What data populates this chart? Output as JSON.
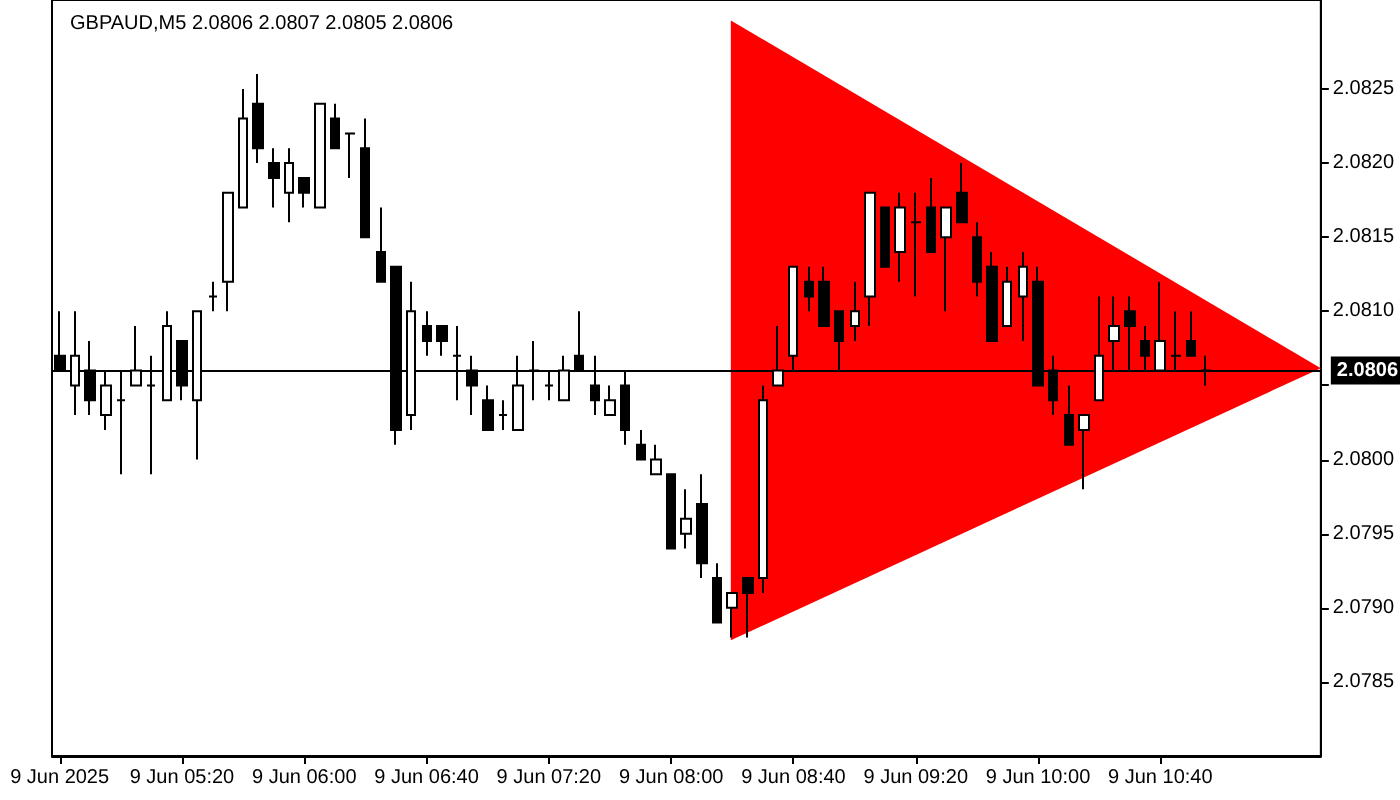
{
  "chart_data": {
    "type": "candlestick",
    "title": "GBPAUD,M5 2.0806 2.0807 2.0805 2.0806",
    "categories": [
      "9 Jun 2025",
      null,
      null,
      null,
      null,
      null,
      null,
      null,
      "9 Jun 05:20",
      null,
      null,
      null,
      null,
      null,
      null,
      null,
      "9 Jun 06:00",
      null,
      null,
      null,
      null,
      null,
      null,
      null,
      "9 Jun 06:40",
      null,
      null,
      null,
      null,
      null,
      null,
      null,
      "9 Jun 07:20",
      null,
      null,
      null,
      null,
      null,
      null,
      null,
      "9 Jun 08:00",
      null,
      null,
      null,
      null,
      null,
      null,
      null,
      "9 Jun 08:40",
      null,
      null,
      null,
      null,
      null,
      null,
      null,
      "9 Jun 09:20",
      null,
      null,
      null,
      null,
      null,
      null,
      null,
      "9 Jun 10:00",
      null,
      null,
      null,
      null,
      null,
      null,
      null,
      "9 Jun 10:40",
      null,
      null,
      null,
      null,
      null,
      null,
      null,
      null,
      null,
      null
    ],
    "ohlc": [
      [
        2.0807,
        2.081,
        2.0806,
        2.0806
      ],
      [
        2.0805,
        2.081,
        2.0803,
        2.0807
      ],
      [
        2.0806,
        2.0808,
        2.0803,
        2.0804
      ],
      [
        2.0803,
        2.0806,
        2.0802,
        2.0805
      ],
      [
        2.0804,
        2.0806,
        2.0799,
        2.0804
      ],
      [
        2.0805,
        2.0809,
        2.0805,
        2.0806
      ],
      [
        2.0805,
        2.0807,
        2.0799,
        2.0805
      ],
      [
        2.0804,
        2.081,
        2.0804,
        2.0809
      ],
      [
        2.0808,
        2.0808,
        2.0804,
        2.0805
      ],
      [
        2.0804,
        2.081,
        2.08,
        2.081
      ],
      [
        2.0811,
        2.0812,
        2.081,
        2.0811
      ],
      [
        2.0812,
        2.0818,
        2.081,
        2.0818
      ],
      [
        2.0817,
        2.0825,
        2.0817,
        2.0823
      ],
      [
        2.0824,
        2.0826,
        2.082,
        2.0821
      ],
      [
        2.082,
        2.0821,
        2.0817,
        2.0819
      ],
      [
        2.0818,
        2.0821,
        2.0816,
        2.082
      ],
      [
        2.0819,
        2.0819,
        2.0817,
        2.0818
      ],
      [
        2.0817,
        2.0824,
        2.0817,
        2.0824
      ],
      [
        2.0823,
        2.0824,
        2.0821,
        2.0821
      ],
      [
        2.0822,
        2.0822,
        2.0819,
        2.0822
      ],
      [
        2.0821,
        2.0823,
        2.0815,
        2.0815
      ],
      [
        2.0814,
        2.0817,
        2.0812,
        2.0812
      ],
      [
        2.0813,
        2.0813,
        2.0801,
        2.0802
      ],
      [
        2.0803,
        2.0812,
        2.0802,
        2.081
      ],
      [
        2.0809,
        2.081,
        2.0807,
        2.0808
      ],
      [
        2.0809,
        2.0809,
        2.0807,
        2.0808
      ],
      [
        2.0807,
        2.0809,
        2.0804,
        2.0807
      ],
      [
        2.0806,
        2.0807,
        2.0803,
        2.0805
      ],
      [
        2.0804,
        2.0805,
        2.0802,
        2.0802
      ],
      [
        2.0803,
        2.0804,
        2.0802,
        2.0803
      ],
      [
        2.0802,
        2.0807,
        2.0802,
        2.0805
      ],
      [
        2.0806,
        2.0808,
        2.0804,
        2.0806
      ],
      [
        2.0805,
        2.0806,
        2.0804,
        2.0805
      ],
      [
        2.0804,
        2.0807,
        2.0804,
        2.0806
      ],
      [
        2.0807,
        2.081,
        2.0806,
        2.0806
      ],
      [
        2.0805,
        2.0807,
        2.0803,
        2.0804
      ],
      [
        2.0803,
        2.0805,
        2.0803,
        2.0804
      ],
      [
        2.0805,
        2.0806,
        2.0801,
        2.0802
      ],
      [
        2.0801,
        2.0802,
        2.08,
        2.08
      ],
      [
        2.0799,
        2.0801,
        2.0799,
        2.08
      ],
      [
        2.0799,
        2.0799,
        2.0794,
        2.0794
      ],
      [
        2.0795,
        2.0798,
        2.0794,
        2.0796
      ],
      [
        2.0797,
        2.0799,
        2.0792,
        2.0793
      ],
      [
        2.0792,
        2.0793,
        2.0789,
        2.0789
      ],
      [
        2.079,
        2.0791,
        2.0788,
        2.0791
      ],
      [
        2.0792,
        2.0792,
        2.0788,
        2.0791
      ],
      [
        2.0792,
        2.0805,
        2.0791,
        2.0804
      ],
      [
        2.0805,
        2.0809,
        2.0805,
        2.0806
      ],
      [
        2.0807,
        2.0813,
        2.0806,
        2.0813
      ],
      [
        2.0812,
        2.0813,
        2.081,
        2.0811
      ],
      [
        2.0812,
        2.0813,
        2.0809,
        2.0809
      ],
      [
        2.081,
        2.081,
        2.0806,
        2.0808
      ],
      [
        2.0809,
        2.0812,
        2.0808,
        2.081
      ],
      [
        2.0811,
        2.0818,
        2.0809,
        2.0818
      ],
      [
        2.0817,
        2.0817,
        2.0813,
        2.0813
      ],
      [
        2.0814,
        2.0818,
        2.0812,
        2.0817
      ],
      [
        2.0816,
        2.0818,
        2.0811,
        2.0816
      ],
      [
        2.0817,
        2.0819,
        2.0814,
        2.0814
      ],
      [
        2.0815,
        2.0817,
        2.081,
        2.0817
      ],
      [
        2.0818,
        2.082,
        2.0816,
        2.0816
      ],
      [
        2.0815,
        2.0816,
        2.0811,
        2.0812
      ],
      [
        2.0813,
        2.0814,
        2.0808,
        2.0808
      ],
      [
        2.0809,
        2.0813,
        2.0809,
        2.0812
      ],
      [
        2.0811,
        2.0814,
        2.0808,
        2.0813
      ],
      [
        2.0812,
        2.0813,
        2.0805,
        2.0805
      ],
      [
        2.0806,
        2.0807,
        2.0803,
        2.0804
      ],
      [
        2.0803,
        2.0805,
        2.0801,
        2.0801
      ],
      [
        2.0802,
        2.0803,
        2.0798,
        2.0803
      ],
      [
        2.0804,
        2.0811,
        2.0804,
        2.0807
      ],
      [
        2.0808,
        2.0811,
        2.0806,
        2.0809
      ],
      [
        2.081,
        2.0811,
        2.0806,
        2.0809
      ],
      [
        2.0808,
        2.0809,
        2.0806,
        2.0807
      ],
      [
        2.0806,
        2.0812,
        2.0806,
        2.0808
      ],
      [
        2.0807,
        2.081,
        2.0806,
        2.0807
      ],
      [
        2.0808,
        2.081,
        2.0807,
        2.0807
      ],
      [
        2.0806,
        2.0807,
        2.0805,
        2.0806
      ],
      null,
      null,
      null,
      null,
      null,
      null,
      null
    ],
    "ylim": [
      2.078,
      2.0831
    ],
    "yticks": [
      2.0785,
      {
        "value": 2.079,
        "label": "2.0790"
      },
      2.0795,
      {
        "value": 2.08,
        "label": "2.0800"
      },
      {
        "value": 2.0805,
        "label": null
      },
      {
        "value": 2.081,
        "label": "2.0810"
      },
      2.0815,
      {
        "value": 2.082,
        "label": "2.0820"
      },
      2.0825
    ],
    "ref_lines": [
      {
        "axis": "y",
        "value": 2.0806,
        "label": "2.0806",
        "color": "#000000"
      }
    ],
    "grid": false
  }
}
